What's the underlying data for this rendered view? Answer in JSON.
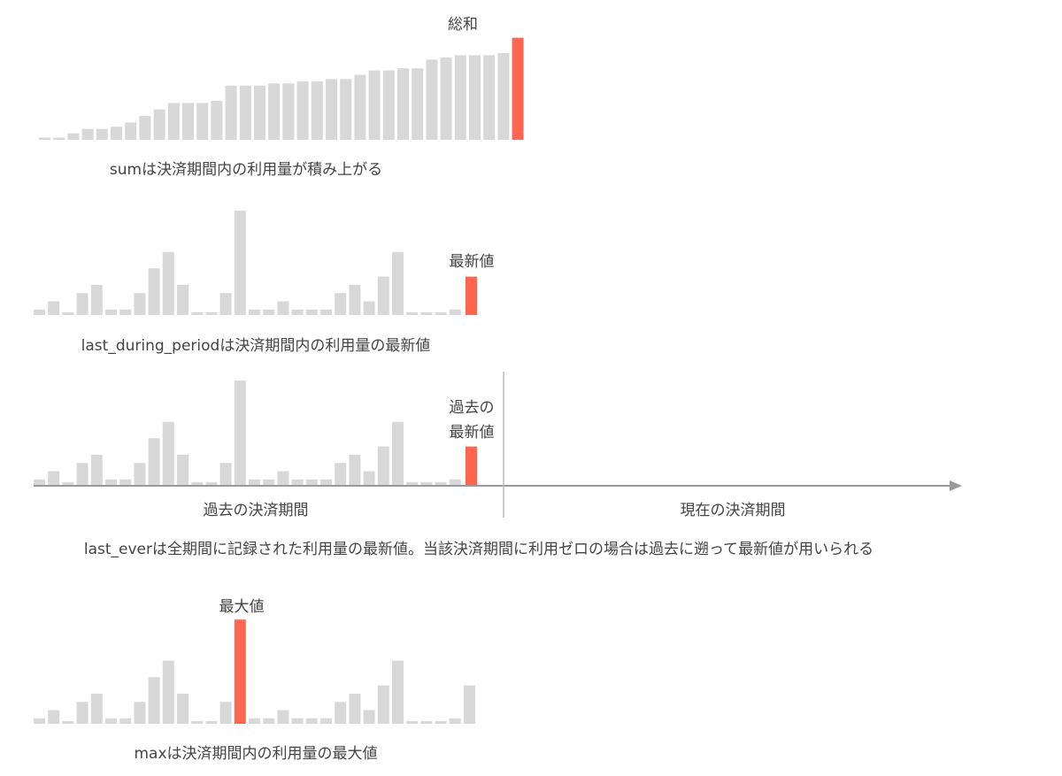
{
  "colors": {
    "bar": "#d8d8d8",
    "highlight": "#ff6652",
    "axis": "#999999",
    "text": "#444444"
  },
  "charts": {
    "sum": {
      "caption": "sumは決済期間内の利用量が積み上がる",
      "highlight_label": "総和",
      "values": [
        1,
        1,
        3,
        5,
        5,
        6,
        8,
        11,
        14,
        17,
        17,
        17,
        18,
        25,
        25,
        25,
        26,
        26,
        27,
        27,
        28,
        28,
        30,
        32,
        32,
        33,
        33,
        37,
        38,
        39,
        39,
        39,
        40
      ],
      "highlight": 31,
      "chart_values": [
        1,
        1,
        3,
        5,
        5,
        6,
        8,
        11,
        14,
        17,
        17,
        17,
        18,
        25,
        25,
        25,
        26,
        26,
        27,
        27,
        28,
        28,
        30,
        32,
        32,
        33,
        33,
        37,
        38,
        39,
        39,
        39,
        40,
        43
      ]
    },
    "last_during_period": {
      "caption": "last_during_periodは決済期間内の利用量の最新値",
      "highlight_label": "最新値",
      "values": [
        2,
        5,
        1,
        8,
        11,
        2,
        2,
        8,
        17,
        23,
        11,
        1,
        1,
        8,
        38,
        2,
        2,
        5,
        2,
        2,
        2,
        8,
        11,
        5,
        14,
        23,
        1,
        1,
        1,
        2
      ],
      "highlight_value": 14
    },
    "last_ever": {
      "caption": "last_everは全期間に記録された利用量の最新値。当該決済期間に利用ゼロの場合は過去に遡って最新値が用いられる",
      "highlight_label_lines": [
        "過去の",
        "最新値"
      ],
      "values": [
        2,
        5,
        1,
        8,
        11,
        2,
        2,
        8,
        17,
        23,
        11,
        1,
        1,
        8,
        38,
        2,
        2,
        5,
        2,
        2,
        2,
        8,
        11,
        5,
        14,
        23,
        1,
        1,
        1,
        2
      ],
      "highlight_value": 14,
      "past_period_label": "過去の決済期間",
      "current_period_label": "現在の決済期間"
    },
    "max": {
      "caption": "maxは決済期間内の利用量の最大値",
      "highlight_label": "最大値",
      "values": [
        2,
        5,
        1,
        8,
        11,
        2,
        2,
        8,
        17,
        23,
        11,
        1,
        1,
        8,
        38,
        2,
        2,
        5,
        2,
        2,
        2,
        8,
        11,
        5,
        14,
        23,
        1,
        1,
        1,
        2,
        14
      ],
      "highlight_index": 14
    }
  },
  "chart_data": [
    {
      "type": "bar",
      "values": [
        1,
        1,
        3,
        5,
        5,
        6,
        8,
        11,
        14,
        17,
        17,
        17,
        18,
        25,
        25,
        25,
        26,
        26,
        27,
        27,
        28,
        28,
        30,
        32,
        32,
        33,
        33,
        37,
        38,
        39,
        39,
        39,
        40,
        43
      ],
      "highlighted": "総和"
    },
    {
      "type": "bar",
      "values": [
        2,
        5,
        1,
        8,
        11,
        2,
        2,
        8,
        17,
        23,
        11,
        1,
        1,
        8,
        38,
        2,
        2,
        5,
        2,
        2,
        2,
        8,
        11,
        5,
        14,
        23,
        1,
        1,
        1,
        2,
        14
      ],
      "highlighted": "最新値"
    },
    {
      "type": "bar",
      "values": [
        2,
        5,
        1,
        8,
        11,
        2,
        2,
        8,
        17,
        23,
        11,
        1,
        1,
        8,
        38,
        2,
        2,
        5,
        2,
        2,
        2,
        8,
        11,
        5,
        14,
        23,
        1,
        1,
        1,
        2,
        14
      ],
      "highlighted": "過去の最新値"
    },
    {
      "type": "bar",
      "values": [
        2,
        5,
        1,
        8,
        11,
        2,
        2,
        8,
        17,
        23,
        11,
        1,
        1,
        8,
        38,
        2,
        2,
        5,
        2,
        2,
        2,
        8,
        11,
        5,
        14,
        23,
        1,
        1,
        1,
        2,
        14
      ],
      "highlighted": "最大値"
    }
  ]
}
